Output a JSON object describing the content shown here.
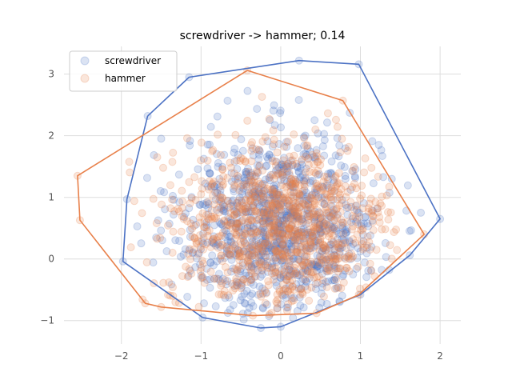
{
  "chart_data": {
    "type": "scatter",
    "title": "screwdriver -> hammer; 0.14",
    "xlabel": "",
    "ylabel": "",
    "xlim": [
      -2.72,
      2.26
    ],
    "ylim": [
      -1.38,
      3.45
    ],
    "x_ticks": [
      -2,
      -1,
      0,
      1,
      2
    ],
    "y_ticks": [
      -1,
      0,
      1,
      2,
      3
    ],
    "x_tick_labels": [
      "−2",
      "−1",
      "0",
      "1",
      "2"
    ],
    "y_tick_labels": [
      "−1",
      "0",
      "1",
      "2",
      "3"
    ],
    "grid": true,
    "legend_position": "top-left",
    "series": [
      {
        "name": "screwdriver",
        "color": "#4c72c4",
        "point_count": 1000,
        "center": [
          0.0,
          0.55
        ],
        "spread": [
          0.62,
          0.72
        ],
        "hull": [
          [
            -1.67,
            2.32
          ],
          [
            -1.15,
            2.95
          ],
          [
            0.23,
            3.22
          ],
          [
            0.98,
            3.16
          ],
          [
            2.0,
            0.65
          ],
          [
            1.62,
            0.06
          ],
          [
            1.0,
            -0.58
          ],
          [
            0.0,
            -1.1
          ],
          [
            -0.25,
            -1.12
          ],
          [
            -0.98,
            -0.95
          ],
          [
            -1.98,
            -0.04
          ],
          [
            -1.93,
            0.97
          ],
          [
            -1.67,
            2.32
          ]
        ]
      },
      {
        "name": "hammer",
        "color": "#e8804a",
        "point_count": 1000,
        "center": [
          0.0,
          0.5
        ],
        "spread": [
          0.7,
          0.68
        ],
        "hull": [
          [
            -0.42,
            3.06
          ],
          [
            0.78,
            2.57
          ],
          [
            1.8,
            0.4
          ],
          [
            0.98,
            -0.58
          ],
          [
            0.45,
            -0.88
          ],
          [
            -0.35,
            -0.92
          ],
          [
            -1.5,
            -0.78
          ],
          [
            -1.7,
            -0.72
          ],
          [
            -2.52,
            0.63
          ],
          [
            -2.55,
            1.35
          ],
          [
            -0.42,
            3.06
          ]
        ]
      }
    ]
  }
}
